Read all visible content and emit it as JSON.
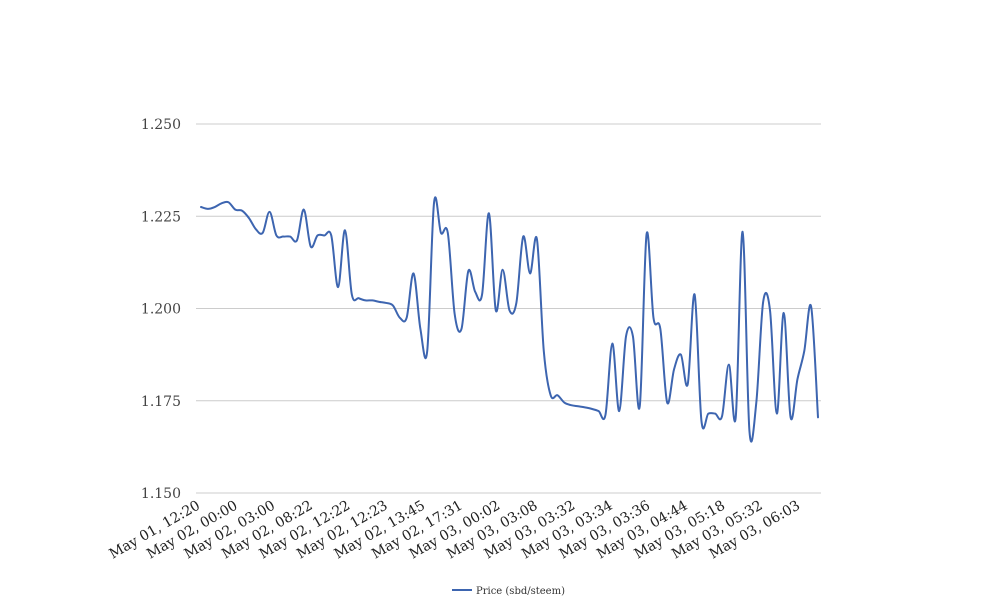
{
  "chart_data": {
    "type": "line",
    "title": "",
    "xlabel": "",
    "ylabel": "",
    "ylim": [
      1.15,
      1.25
    ],
    "yticks": [
      "1.150",
      "1.175",
      "1.200",
      "1.225",
      "1.250"
    ],
    "grid": true,
    "legend_position": "bottom-center",
    "x_tick_labels": [
      "May 01, 12:20",
      "May 02, 00:00",
      "May 02, 03:00",
      "May 02, 08:22",
      "May 02, 12:22",
      "May 02, 12:23",
      "May 02, 13:45",
      "May 02, 17:31",
      "May 03, 00:02",
      "May 03, 03:08",
      "May 03, 03:32",
      "May 03, 03:34",
      "May 03, 03:36",
      "May 03, 04:44",
      "May 03, 05:18",
      "May 03, 05:32",
      "May 03, 06:03"
    ],
    "series": [
      {
        "name": "Price (sbd/steem)",
        "color": "#3d65b0",
        "values": [
          1.2275,
          1.227,
          1.2275,
          1.2285,
          1.2288,
          1.2268,
          1.2265,
          1.2245,
          1.2215,
          1.2205,
          1.2262,
          1.2198,
          1.2195,
          1.2195,
          1.2185,
          1.2268,
          1.2168,
          1.2198,
          1.2198,
          1.2198,
          1.2058,
          1.2212,
          1.2038,
          1.2028,
          1.2022,
          1.2022,
          1.2018,
          1.2015,
          1.2008,
          1.1975,
          1.1975,
          1.2095,
          1.1945,
          1.1885,
          1.2288,
          1.2205,
          1.2205,
          1.1985,
          1.1945,
          1.2102,
          1.2045,
          1.2038,
          1.2258,
          1.1995,
          1.2105,
          1.1995,
          1.2015,
          1.2195,
          1.2095,
          1.2188,
          1.1885,
          1.1765,
          1.1765,
          1.1745,
          1.1738,
          1.1735,
          1.1732,
          1.1728,
          1.1722,
          1.1712,
          1.1905,
          1.1722,
          1.1925,
          1.1925,
          1.1735,
          1.2202,
          1.1975,
          1.1945,
          1.1745,
          1.1835,
          1.1875,
          1.1795,
          1.2038,
          1.1695,
          1.1715,
          1.1715,
          1.1708,
          1.1848,
          1.1705,
          1.2208,
          1.1668,
          1.1745,
          1.2018,
          1.1995,
          1.1715,
          1.1988,
          1.1705,
          1.1808,
          1.1885,
          1.2005,
          1.1705
        ]
      }
    ]
  }
}
